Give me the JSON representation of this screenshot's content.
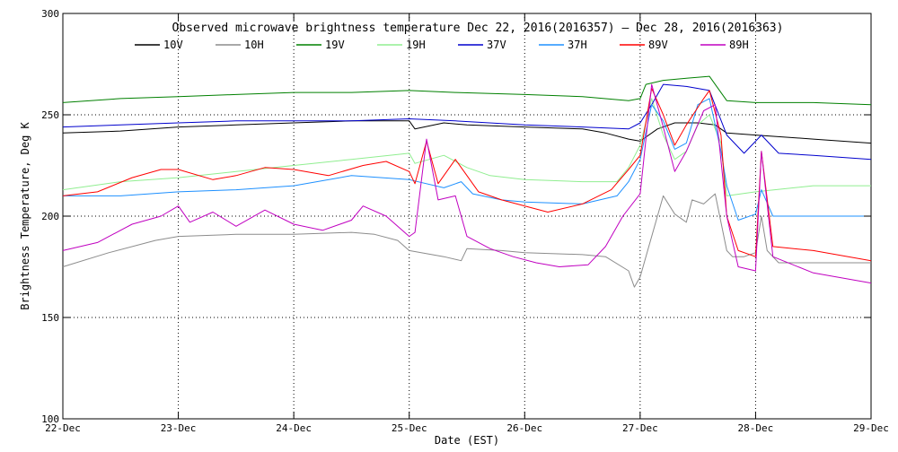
{
  "chart_data": {
    "type": "line",
    "title": "Observed microwave brightness temperature Dec 22, 2016(2016357) – Dec 28, 2016(2016363)",
    "xlabel": "Date (EST)",
    "ylabel": "Brightness Temperature, Deg K",
    "xlim": [
      0,
      7
    ],
    "ylim": [
      100,
      300
    ],
    "x_tick_labels": [
      "22-Dec",
      "23-Dec",
      "24-Dec",
      "25-Dec",
      "26-Dec",
      "27-Dec",
      "28-Dec",
      "29-Dec"
    ],
    "y_ticks": [
      100,
      150,
      200,
      250,
      300
    ],
    "grid": true,
    "legend_position": "top",
    "x_unit_note": "x values are day offsets from 22-Dec 00:00 EST",
    "series": [
      {
        "name": "10V",
        "color": "#000000",
        "points": [
          [
            0,
            241
          ],
          [
            0.5,
            242
          ],
          [
            1,
            244
          ],
          [
            1.5,
            245
          ],
          [
            2,
            246
          ],
          [
            2.5,
            247
          ],
          [
            3,
            247
          ],
          [
            3.05,
            243
          ],
          [
            3.3,
            246
          ],
          [
            3.5,
            245
          ],
          [
            4,
            244
          ],
          [
            4.5,
            243
          ],
          [
            4.7,
            241
          ],
          [
            4.9,
            238
          ],
          [
            5.0,
            237
          ],
          [
            5.15,
            243
          ],
          [
            5.3,
            246
          ],
          [
            5.5,
            246
          ],
          [
            5.65,
            245
          ],
          [
            5.75,
            241
          ],
          [
            6.0,
            240
          ],
          [
            6.5,
            238
          ],
          [
            7,
            236
          ]
        ]
      },
      {
        "name": "10H",
        "color": "#8c8c8c",
        "points": [
          [
            0,
            175
          ],
          [
            0.4,
            182
          ],
          [
            0.8,
            188
          ],
          [
            1,
            190
          ],
          [
            1.5,
            191
          ],
          [
            2,
            191
          ],
          [
            2.5,
            192
          ],
          [
            2.7,
            191
          ],
          [
            2.9,
            188
          ],
          [
            3.0,
            183
          ],
          [
            3.3,
            180
          ],
          [
            3.45,
            178
          ],
          [
            3.5,
            184
          ],
          [
            3.8,
            183
          ],
          [
            4,
            182
          ],
          [
            4.5,
            181
          ],
          [
            4.7,
            180
          ],
          [
            4.9,
            173
          ],
          [
            4.95,
            165
          ],
          [
            5.0,
            170
          ],
          [
            5.1,
            190
          ],
          [
            5.2,
            210
          ],
          [
            5.3,
            201
          ],
          [
            5.4,
            197
          ],
          [
            5.45,
            208
          ],
          [
            5.55,
            206
          ],
          [
            5.65,
            211
          ],
          [
            5.75,
            183
          ],
          [
            5.8,
            180
          ],
          [
            5.9,
            180
          ],
          [
            6.0,
            182
          ],
          [
            6.05,
            200
          ],
          [
            6.1,
            183
          ],
          [
            6.2,
            177
          ],
          [
            6.5,
            177
          ],
          [
            7,
            177
          ]
        ]
      },
      {
        "name": "19V",
        "color": "#008000",
        "points": [
          [
            0,
            256
          ],
          [
            0.5,
            258
          ],
          [
            1,
            259
          ],
          [
            1.5,
            260
          ],
          [
            2,
            261
          ],
          [
            2.5,
            261
          ],
          [
            3,
            262
          ],
          [
            3.4,
            261
          ],
          [
            4,
            260
          ],
          [
            4.5,
            259
          ],
          [
            4.9,
            257
          ],
          [
            5.0,
            258
          ],
          [
            5.05,
            265
          ],
          [
            5.2,
            267
          ],
          [
            5.4,
            268
          ],
          [
            5.6,
            269
          ],
          [
            5.75,
            257
          ],
          [
            6,
            256
          ],
          [
            6.5,
            256
          ],
          [
            7,
            255
          ]
        ]
      },
      {
        "name": "19H",
        "color": "#90ee90",
        "points": [
          [
            0,
            213
          ],
          [
            0.5,
            217
          ],
          [
            1,
            219
          ],
          [
            1.5,
            222
          ],
          [
            2,
            225
          ],
          [
            2.5,
            228
          ],
          [
            3,
            231
          ],
          [
            3.05,
            226
          ],
          [
            3.3,
            230
          ],
          [
            3.5,
            224
          ],
          [
            3.7,
            220
          ],
          [
            4,
            218
          ],
          [
            4.5,
            217
          ],
          [
            4.8,
            217
          ],
          [
            4.9,
            224
          ],
          [
            5.0,
            235
          ],
          [
            5.1,
            258
          ],
          [
            5.2,
            240
          ],
          [
            5.3,
            228
          ],
          [
            5.4,
            232
          ],
          [
            5.5,
            245
          ],
          [
            5.6,
            250
          ],
          [
            5.7,
            236
          ],
          [
            5.75,
            210
          ],
          [
            6.0,
            212
          ],
          [
            6.5,
            215
          ],
          [
            7,
            215
          ]
        ]
      },
      {
        "name": "37V",
        "color": "#0000cd",
        "points": [
          [
            0,
            244
          ],
          [
            0.5,
            245
          ],
          [
            1,
            246
          ],
          [
            1.5,
            247
          ],
          [
            2,
            247
          ],
          [
            2.5,
            247
          ],
          [
            3,
            248
          ],
          [
            3.4,
            247
          ],
          [
            4,
            245
          ],
          [
            4.5,
            244
          ],
          [
            4.9,
            243
          ],
          [
            5.0,
            246
          ],
          [
            5.1,
            255
          ],
          [
            5.2,
            265
          ],
          [
            5.4,
            264
          ],
          [
            5.6,
            262
          ],
          [
            5.75,
            240
          ],
          [
            5.9,
            231
          ],
          [
            6.05,
            240
          ],
          [
            6.2,
            231
          ],
          [
            6.5,
            230
          ],
          [
            7,
            228
          ]
        ]
      },
      {
        "name": "37H",
        "color": "#1e90ff",
        "points": [
          [
            0,
            210
          ],
          [
            0.5,
            210
          ],
          [
            1,
            212
          ],
          [
            1.5,
            213
          ],
          [
            2,
            215
          ],
          [
            2.5,
            220
          ],
          [
            3,
            218
          ],
          [
            3.3,
            214
          ],
          [
            3.45,
            217
          ],
          [
            3.55,
            211
          ],
          [
            3.8,
            208
          ],
          [
            4,
            207
          ],
          [
            4.5,
            206
          ],
          [
            4.8,
            210
          ],
          [
            4.9,
            217
          ],
          [
            5.0,
            228
          ],
          [
            5.1,
            255
          ],
          [
            5.2,
            247
          ],
          [
            5.3,
            233
          ],
          [
            5.4,
            236
          ],
          [
            5.5,
            255
          ],
          [
            5.6,
            258
          ],
          [
            5.7,
            232
          ],
          [
            5.75,
            215
          ],
          [
            5.85,
            198
          ],
          [
            6.0,
            201
          ],
          [
            6.05,
            213
          ],
          [
            6.15,
            200
          ],
          [
            6.5,
            200
          ],
          [
            7,
            200
          ]
        ]
      },
      {
        "name": "89V",
        "color": "#ff0000",
        "points": [
          [
            0,
            210
          ],
          [
            0.3,
            212
          ],
          [
            0.6,
            219
          ],
          [
            0.85,
            223
          ],
          [
            1,
            223
          ],
          [
            1.3,
            218
          ],
          [
            1.5,
            220
          ],
          [
            1.75,
            224
          ],
          [
            2,
            223
          ],
          [
            2.3,
            220
          ],
          [
            2.6,
            225
          ],
          [
            2.8,
            227
          ],
          [
            3.0,
            222
          ],
          [
            3.05,
            216
          ],
          [
            3.15,
            237
          ],
          [
            3.25,
            216
          ],
          [
            3.4,
            228
          ],
          [
            3.5,
            220
          ],
          [
            3.6,
            212
          ],
          [
            3.8,
            208
          ],
          [
            4.2,
            202
          ],
          [
            4.5,
            206
          ],
          [
            4.75,
            213
          ],
          [
            4.9,
            223
          ],
          [
            5.0,
            230
          ],
          [
            5.1,
            263
          ],
          [
            5.2,
            250
          ],
          [
            5.3,
            235
          ],
          [
            5.4,
            245
          ],
          [
            5.55,
            258
          ],
          [
            5.6,
            262
          ],
          [
            5.7,
            240
          ],
          [
            5.75,
            200
          ],
          [
            5.85,
            183
          ],
          [
            6.0,
            180
          ],
          [
            6.05,
            232
          ],
          [
            6.15,
            185
          ],
          [
            6.5,
            183
          ],
          [
            7,
            178
          ]
        ]
      },
      {
        "name": "89H",
        "color": "#c000c0",
        "points": [
          [
            0,
            183
          ],
          [
            0.3,
            187
          ],
          [
            0.6,
            196
          ],
          [
            0.85,
            200
          ],
          [
            1.0,
            205
          ],
          [
            1.1,
            197
          ],
          [
            1.3,
            202
          ],
          [
            1.5,
            195
          ],
          [
            1.75,
            203
          ],
          [
            2,
            196
          ],
          [
            2.25,
            193
          ],
          [
            2.5,
            198
          ],
          [
            2.6,
            205
          ],
          [
            2.8,
            200
          ],
          [
            3.0,
            190
          ],
          [
            3.05,
            192
          ],
          [
            3.15,
            238
          ],
          [
            3.25,
            208
          ],
          [
            3.4,
            210
          ],
          [
            3.5,
            190
          ],
          [
            3.7,
            184
          ],
          [
            3.9,
            180
          ],
          [
            4.1,
            177
          ],
          [
            4.3,
            175
          ],
          [
            4.55,
            176
          ],
          [
            4.7,
            185
          ],
          [
            4.85,
            200
          ],
          [
            5.0,
            211
          ],
          [
            5.1,
            265
          ],
          [
            5.2,
            244
          ],
          [
            5.3,
            222
          ],
          [
            5.4,
            232
          ],
          [
            5.55,
            252
          ],
          [
            5.65,
            255
          ],
          [
            5.75,
            200
          ],
          [
            5.85,
            175
          ],
          [
            6.0,
            173
          ],
          [
            6.05,
            232
          ],
          [
            6.15,
            180
          ],
          [
            6.5,
            172
          ],
          [
            7,
            167
          ]
        ]
      }
    ]
  }
}
